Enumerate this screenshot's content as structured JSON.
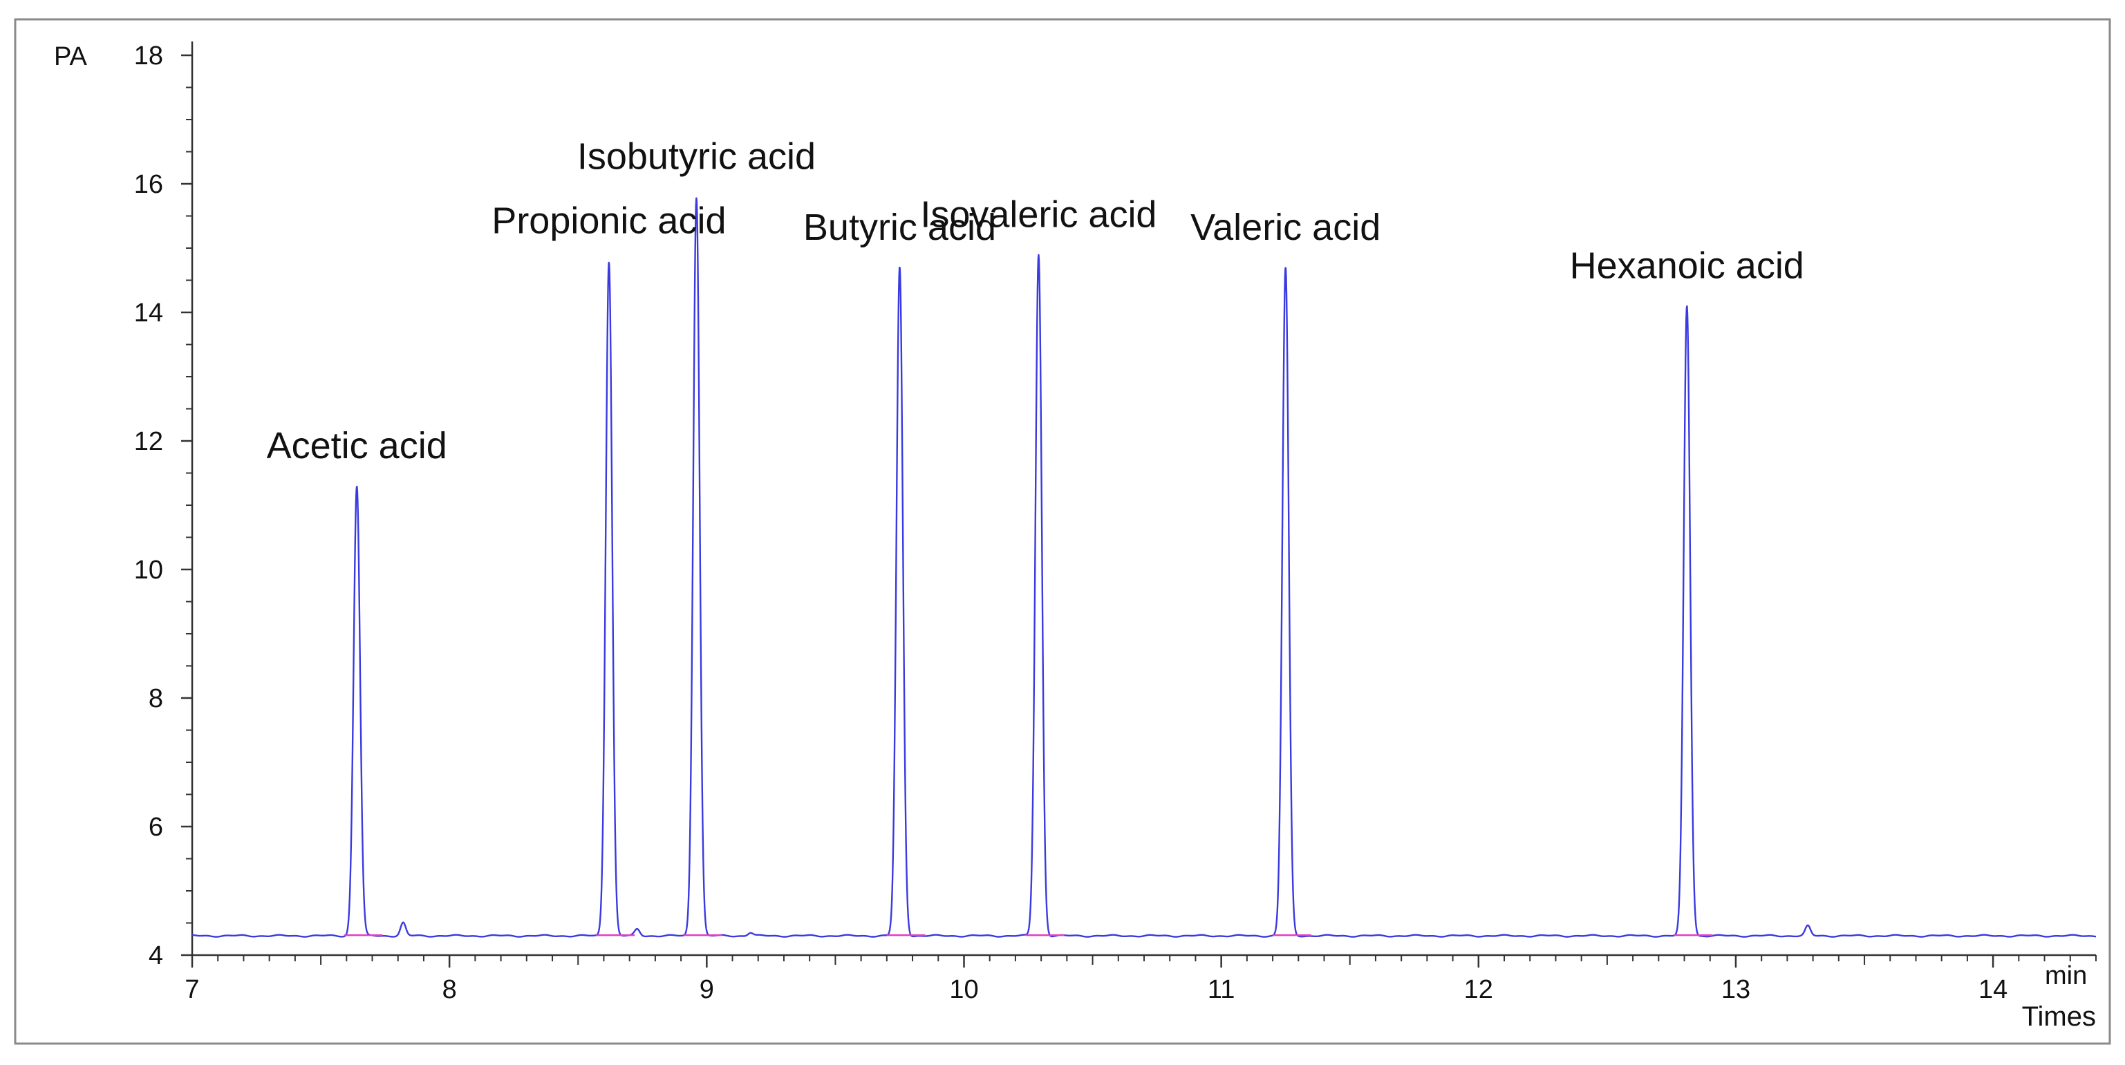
{
  "chart_data": {
    "type": "line",
    "title": "",
    "ylabel": "PA",
    "xunit": "min",
    "xlabel": "Times",
    "xlim": [
      7,
      14.4
    ],
    "ylim": [
      4,
      18
    ],
    "baseline": 4.3,
    "xticks": [
      7,
      8,
      9,
      10,
      11,
      12,
      13,
      14
    ],
    "yticks": [
      4,
      6,
      8,
      10,
      12,
      14,
      16,
      18
    ],
    "grid": false,
    "line_color": "#3a3ae0",
    "baseline_marker_color": "#e040c0",
    "peaks": [
      {
        "name": "Acetic acid",
        "x": 7.64,
        "y": 11.3
      },
      {
        "name": "Propionic acid",
        "x": 8.62,
        "y": 14.8
      },
      {
        "name": "Isobutyric acid",
        "x": 8.96,
        "y": 15.8
      },
      {
        "name": "Butyric acid",
        "x": 9.75,
        "y": 14.7
      },
      {
        "name": "Isovaleric acid",
        "x": 10.29,
        "y": 14.9
      },
      {
        "name": "Valeric acid",
        "x": 11.25,
        "y": 14.7
      },
      {
        "name": "Hexanoic acid",
        "x": 12.81,
        "y": 14.1
      }
    ],
    "minor_peaks": [
      {
        "x": 7.82,
        "y": 4.5
      },
      {
        "x": 8.73,
        "y": 4.4
      },
      {
        "x": 9.17,
        "y": 4.35
      },
      {
        "x": 13.28,
        "y": 4.45
      }
    ]
  }
}
